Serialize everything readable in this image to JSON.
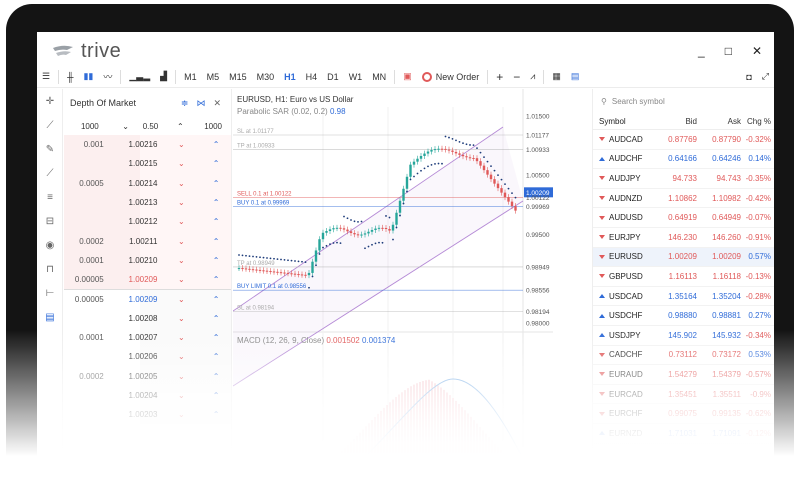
{
  "app": {
    "logo_text": "trive",
    "window_buttons": [
      "_",
      "□",
      "✕"
    ]
  },
  "toolbar": {
    "timeframes": [
      "M1",
      "M5",
      "M15",
      "M30",
      "H1",
      "H4",
      "D1",
      "W1",
      "MN"
    ],
    "selected_timeframe": "H1",
    "new_order": "New Order"
  },
  "dom": {
    "title": "Depth Of Market",
    "volume_value": "1000",
    "step_value": "0.50",
    "lots_value": "1000",
    "rows": [
      {
        "vol": "0.001",
        "price": "1.00216",
        "side": "sell"
      },
      {
        "vol": "",
        "price": "1.00215",
        "side": "sell"
      },
      {
        "vol": "0.0005",
        "price": "1.00214",
        "side": "sell"
      },
      {
        "vol": "",
        "price": "1.00213",
        "side": "sell"
      },
      {
        "vol": "",
        "price": "1.00212",
        "side": "sell"
      },
      {
        "vol": "0.0002",
        "price": "1.00211",
        "side": "sell"
      },
      {
        "vol": "0.0001",
        "price": "1.00210",
        "side": "sell"
      },
      {
        "vol": "0.00005",
        "price": "1.00209",
        "side": "sell",
        "hl": true
      },
      {
        "vol": "0.00005",
        "price": "1.00209",
        "side": "buy",
        "hl": true
      },
      {
        "vol": "",
        "price": "1.00208",
        "side": "buy"
      },
      {
        "vol": "0.0001",
        "price": "1.00207",
        "side": "buy"
      },
      {
        "vol": "",
        "price": "1.00206",
        "side": "buy"
      },
      {
        "vol": "0.0002",
        "price": "1.00205",
        "side": "buy"
      },
      {
        "vol": "",
        "price": "1.00204",
        "side": "buy"
      },
      {
        "vol": "",
        "price": "1.00203",
        "side": "buy"
      }
    ]
  },
  "chart": {
    "title": "EURUSD, H1: Euro vs US Dollar",
    "indicator_label": "Parabolic SAR (0.02, 0.2)",
    "indicator_value": "0.98",
    "macd_label": "MACD (12, 26, 9, Close)",
    "macd_v1": "0.001502",
    "macd_v2": "0.001374",
    "price_labels": [
      "1.01500",
      "1.01177",
      "1.00933",
      "1.00500",
      "1.00209",
      "1.00122",
      "0.99969",
      "0.99500",
      "0.98949",
      "0.98556",
      "0.98194",
      "0.98000"
    ],
    "current_price": "1.00209",
    "lines": {
      "sl": "SL at 1.01177",
      "tp_top": "TP at 1.00933",
      "sell": "SELL 0.1 at 1.00122",
      "buy": "BUY 0.1 at 0.99969",
      "tp_bottom": "TP at 0.98949",
      "buy_limit": "BUY LIMIT 0.1 at 0.98556",
      "sl_bottom": "SL at 0.98194"
    }
  },
  "watchlist": {
    "search_placeholder": "Search symbol",
    "headers": [
      "Symbol",
      "Bid",
      "Ask",
      "Chg %"
    ],
    "rows": [
      {
        "symbol": "AUDCAD",
        "bid": "0.87769",
        "ask": "0.87790",
        "chg": "-0.32%",
        "dir": "down"
      },
      {
        "symbol": "AUDCHF",
        "bid": "0.64166",
        "ask": "0.64246",
        "chg": "0.14%",
        "dir": "up"
      },
      {
        "symbol": "AUDJPY",
        "bid": "94.733",
        "ask": "94.743",
        "chg": "-0.35%",
        "dir": "down"
      },
      {
        "symbol": "AUDNZD",
        "bid": "1.10862",
        "ask": "1.10982",
        "chg": "-0.42%",
        "dir": "down"
      },
      {
        "symbol": "AUDUSD",
        "bid": "0.64919",
        "ask": "0.64949",
        "chg": "-0.07%",
        "dir": "down"
      },
      {
        "symbol": "EURJPY",
        "bid": "146.230",
        "ask": "146.260",
        "chg": "-0.91%",
        "dir": "down"
      },
      {
        "symbol": "EURUSD",
        "bid": "1.00209",
        "ask": "1.00209",
        "chg": "0.57%",
        "dir": "down",
        "active": true
      },
      {
        "symbol": "GBPUSD",
        "bid": "1.16113",
        "ask": "1.16118",
        "chg": "-0.13%",
        "dir": "down"
      },
      {
        "symbol": "USDCAD",
        "bid": "1.35164",
        "ask": "1.35204",
        "chg": "-0.28%",
        "dir": "up"
      },
      {
        "symbol": "USDCHF",
        "bid": "0.98880",
        "ask": "0.98881",
        "chg": "0.27%",
        "dir": "up"
      },
      {
        "symbol": "USDJPY",
        "bid": "145.902",
        "ask": "145.932",
        "chg": "-0.34%",
        "dir": "up"
      },
      {
        "symbol": "CADCHF",
        "bid": "0.73112",
        "ask": "0.73172",
        "chg": "0.53%",
        "dir": "down"
      },
      {
        "symbol": "EURAUD",
        "bid": "1.54279",
        "ask": "1.54379",
        "chg": "-0.57%",
        "dir": "down"
      },
      {
        "symbol": "EURCAD",
        "bid": "1.35451",
        "ask": "1.35511",
        "chg": "-0.9%",
        "dir": "down"
      },
      {
        "symbol": "EURCHF",
        "bid": "0.99075",
        "ask": "0.99135",
        "chg": "-0.62%",
        "dir": "down"
      },
      {
        "symbol": "EURNZD",
        "bid": "1.71031",
        "ask": "1.71091",
        "chg": "-0.12%",
        "dir": "up"
      }
    ]
  },
  "colors": {
    "accent": "#2f6bd8",
    "down": "#e05959",
    "up": "#2f6bd8",
    "channel": "#b58ad6"
  }
}
